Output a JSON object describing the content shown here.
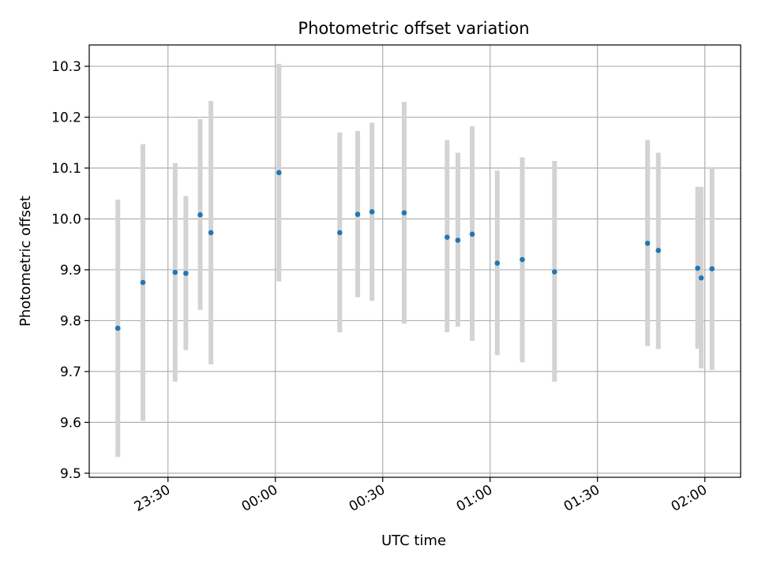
{
  "chart_data": {
    "type": "scatter",
    "title": "Photometric offset variation",
    "xlabel": "UTC time",
    "ylabel": "Photometric offset",
    "x_axis": {
      "kind": "time",
      "xlim": [
        "23:08",
        "02:10"
      ],
      "ticks": [
        {
          "value": "23:30",
          "label": "23:30"
        },
        {
          "value": "00:00",
          "label": "00:00"
        },
        {
          "value": "00:30",
          "label": "00:30"
        },
        {
          "value": "01:00",
          "label": "01:00"
        },
        {
          "value": "01:30",
          "label": "01:30"
        },
        {
          "value": "02:00",
          "label": "02:00"
        }
      ]
    },
    "y_axis": {
      "ylim": [
        9.492,
        10.342
      ],
      "ticks": [
        9.5,
        9.6,
        9.7,
        9.8,
        9.9,
        10.0,
        10.1,
        10.2,
        10.3
      ],
      "tick_labels": [
        "9.5",
        "9.6",
        "9.7",
        "9.8",
        "9.9",
        "10.0",
        "10.1",
        "10.2",
        "10.3"
      ]
    },
    "grid": true,
    "series": [
      {
        "marker_color": "#1f77b4",
        "errorbar_color": "#d3d3d3",
        "points": [
          {
            "t": "23:16",
            "y": 9.785,
            "ylow": 9.532,
            "yhigh": 10.038
          },
          {
            "t": "23:23",
            "y": 9.875,
            "ylow": 9.603,
            "yhigh": 10.147
          },
          {
            "t": "23:32",
            "y": 9.895,
            "ylow": 9.68,
            "yhigh": 10.11
          },
          {
            "t": "23:35",
            "y": 9.893,
            "ylow": 9.742,
            "yhigh": 10.045
          },
          {
            "t": "23:39",
            "y": 10.008,
            "ylow": 9.821,
            "yhigh": 10.196
          },
          {
            "t": "23:42",
            "y": 9.973,
            "ylow": 9.714,
            "yhigh": 10.232
          },
          {
            "t": "00:01",
            "y": 10.091,
            "ylow": 9.877,
            "yhigh": 10.305
          },
          {
            "t": "00:18",
            "y": 9.973,
            "ylow": 9.777,
            "yhigh": 10.17
          },
          {
            "t": "00:23",
            "y": 10.009,
            "ylow": 9.846,
            "yhigh": 10.173
          },
          {
            "t": "00:27",
            "y": 10.014,
            "ylow": 9.839,
            "yhigh": 10.189
          },
          {
            "t": "00:36",
            "y": 10.012,
            "ylow": 9.794,
            "yhigh": 10.23
          },
          {
            "t": "00:48",
            "y": 9.964,
            "ylow": 9.777,
            "yhigh": 10.155
          },
          {
            "t": "00:51",
            "y": 9.958,
            "ylow": 9.788,
            "yhigh": 10.13
          },
          {
            "t": "00:55",
            "y": 9.97,
            "ylow": 9.76,
            "yhigh": 10.182
          },
          {
            "t": "01:02",
            "y": 9.913,
            "ylow": 9.732,
            "yhigh": 10.095
          },
          {
            "t": "01:09",
            "y": 9.92,
            "ylow": 9.718,
            "yhigh": 10.121
          },
          {
            "t": "01:18",
            "y": 9.896,
            "ylow": 9.68,
            "yhigh": 10.114
          },
          {
            "t": "01:44",
            "y": 9.952,
            "ylow": 9.75,
            "yhigh": 10.155
          },
          {
            "t": "01:47",
            "y": 9.938,
            "ylow": 9.744,
            "yhigh": 10.13
          },
          {
            "t": "01:58",
            "y": 9.903,
            "ylow": 9.745,
            "yhigh": 10.063
          },
          {
            "t": "01:59",
            "y": 9.884,
            "ylow": 9.706,
            "yhigh": 10.063
          },
          {
            "t": "02:02",
            "y": 9.902,
            "ylow": 9.703,
            "yhigh": 10.102
          }
        ]
      }
    ]
  }
}
